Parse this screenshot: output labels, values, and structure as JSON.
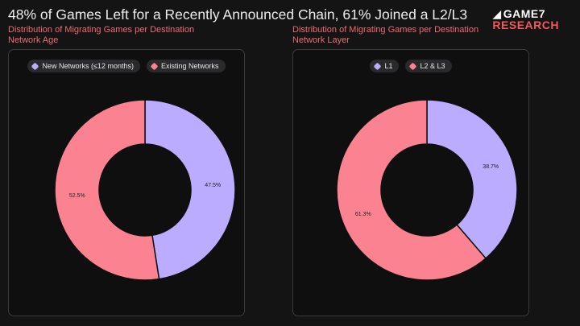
{
  "title": "48% of Games Left for a Recently Announced Chain, 61% Joined a L2/L3",
  "brand": {
    "line1": "GAME7",
    "line2": "RESEARCH",
    "mark": "7"
  },
  "colors": {
    "purple": "#bcacff",
    "pink": "#fb8391",
    "background": "#141414",
    "accent": "#ec6b74"
  },
  "chart_data": [
    {
      "type": "pie",
      "donut": true,
      "title": "Distribution of Migrating Games per Destination Network Age",
      "categories": [
        "New Networks (≤12 months)",
        "Existing Networks"
      ],
      "values": [
        47.5,
        52.5
      ],
      "labels": [
        "47.5%",
        "52.5%"
      ],
      "colors": [
        "#bcacff",
        "#fb8391"
      ],
      "legend": "top-center"
    },
    {
      "type": "pie",
      "donut": true,
      "title": "Distribution of Migrating Games per Destination Network Layer",
      "categories": [
        "L1",
        "L2 & L3"
      ],
      "values": [
        38.7,
        61.3
      ],
      "labels": [
        "38.7%",
        "61.3%"
      ],
      "colors": [
        "#bcacff",
        "#fb8391"
      ],
      "legend": "top-center"
    }
  ]
}
